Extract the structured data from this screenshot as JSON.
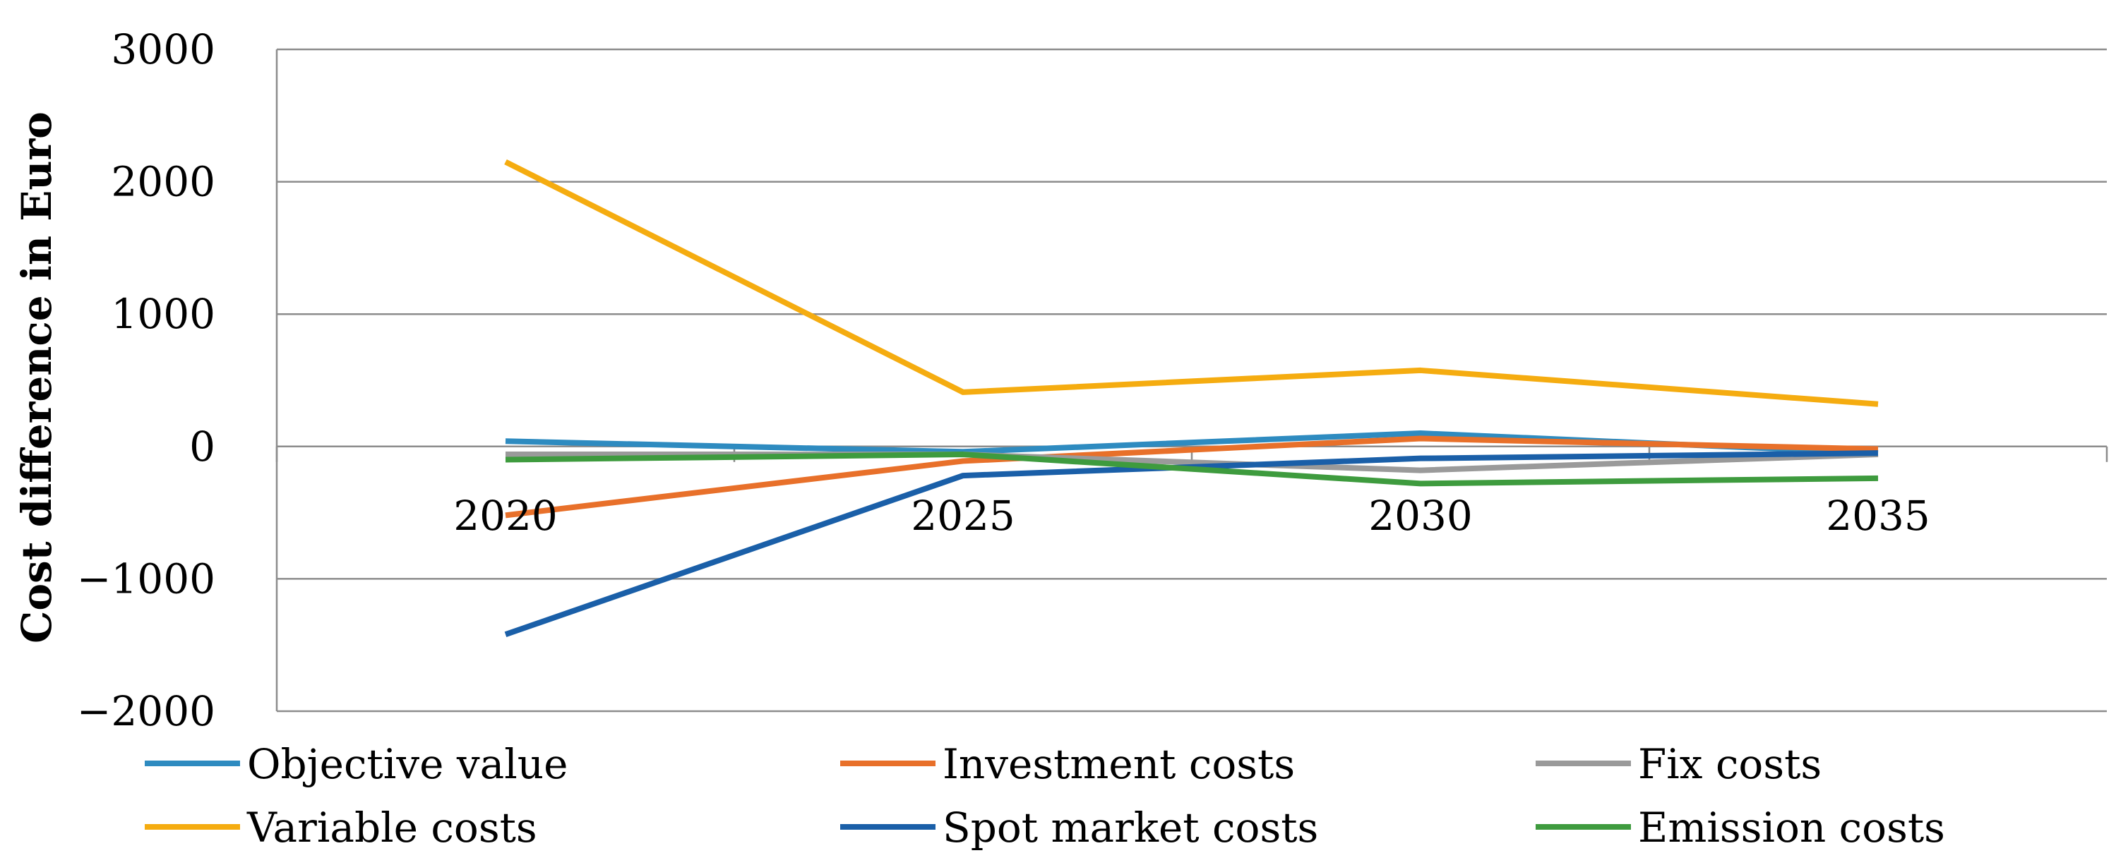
{
  "chart_data": {
    "type": "line",
    "title": "",
    "xlabel": "",
    "ylabel": "Cost difference in Euro",
    "categories": [
      "2020",
      "2025",
      "2030",
      "2035"
    ],
    "ylim": [
      -2000,
      3000
    ],
    "yticks": [
      3000,
      2000,
      1000,
      0,
      -1000,
      -2000
    ],
    "ytick_labels": [
      "3000",
      "2000",
      "1000",
      "0",
      "−1000",
      "−2000"
    ],
    "grid": true,
    "legend_position": "bottom",
    "series": [
      {
        "name": "Objective value",
        "color": "#2E8BC0",
        "values": [
          40,
          -40,
          100,
          -50
        ]
      },
      {
        "name": "Investment costs",
        "color": "#E8702A",
        "values": [
          -520,
          -110,
          60,
          -20
        ]
      },
      {
        "name": "Fix costs",
        "color": "#9A9A9A",
        "values": [
          -60,
          -60,
          -180,
          -60
        ]
      },
      {
        "name": "Variable costs",
        "color": "#F5AC10",
        "values": [
          2150,
          410,
          575,
          320
        ]
      },
      {
        "name": "Spot market costs",
        "color": "#1A5FA8",
        "values": [
          -1420,
          -220,
          -90,
          -50
        ]
      },
      {
        "name": "Emission costs",
        "color": "#3E9B3E",
        "values": [
          -100,
          -60,
          -280,
          -240
        ]
      }
    ]
  }
}
